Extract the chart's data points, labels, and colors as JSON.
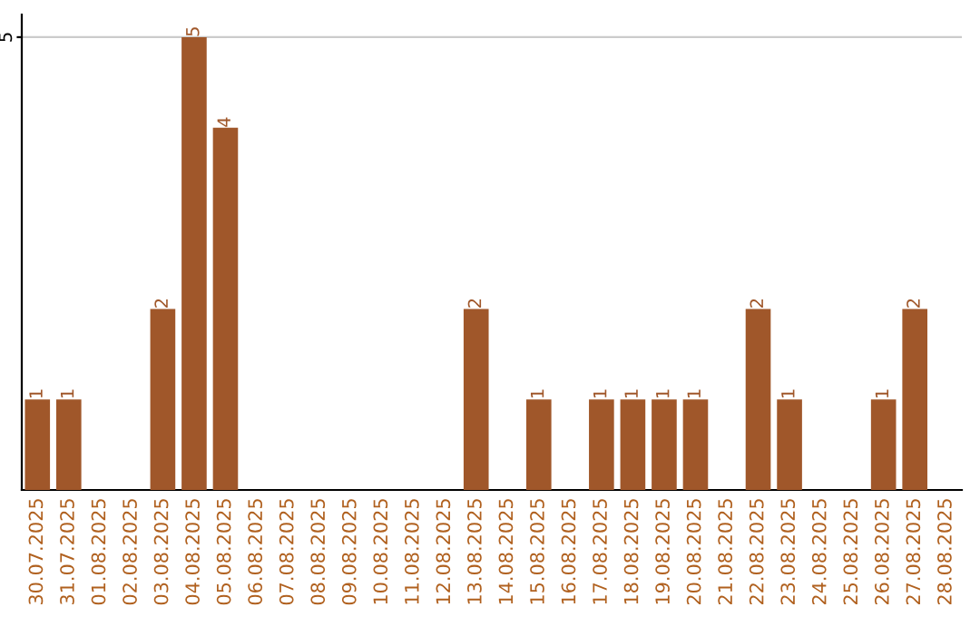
{
  "chart_data": {
    "type": "bar",
    "categories": [
      "30.07.2025",
      "31.07.2025",
      "01.08.2025",
      "02.08.2025",
      "03.08.2025",
      "04.08.2025",
      "05.08.2025",
      "06.08.2025",
      "07.08.2025",
      "08.08.2025",
      "09.08.2025",
      "10.08.2025",
      "11.08.2025",
      "12.08.2025",
      "13.08.2025",
      "14.08.2025",
      "15.08.2025",
      "16.08.2025",
      "17.08.2025",
      "18.08.2025",
      "19.08.2025",
      "20.08.2025",
      "21.08.2025",
      "22.08.2025",
      "23.08.2025",
      "24.08.2025",
      "25.08.2025",
      "26.08.2025",
      "27.08.2025",
      "28.08.2025"
    ],
    "values": [
      1,
      1,
      0,
      0,
      2,
      5,
      4,
      0,
      0,
      0,
      0,
      0,
      0,
      0,
      2,
      0,
      1,
      0,
      1,
      1,
      1,
      1,
      0,
      2,
      1,
      0,
      0,
      1,
      2,
      0
    ],
    "value_labels": [
      "1",
      "1",
      null,
      null,
      "2",
      "5",
      "4",
      null,
      null,
      null,
      null,
      null,
      null,
      null,
      "2",
      null,
      "1",
      null,
      "1",
      "1",
      "1",
      "1",
      null,
      "2",
      "1",
      null,
      null,
      "1",
      "2",
      null
    ],
    "color": "#a0572a",
    "ylim": [
      0,
      5.25
    ],
    "yticks": [
      5
    ],
    "grid": "y"
  }
}
